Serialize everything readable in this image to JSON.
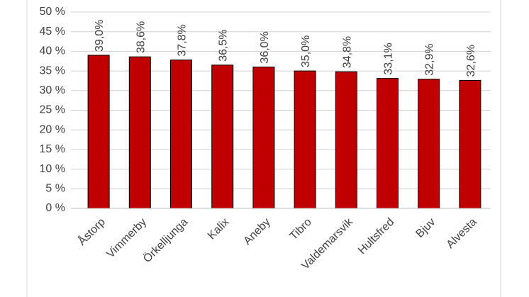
{
  "chart_data": {
    "type": "bar",
    "categories": [
      "Åstorp",
      "Vimmerby",
      "Örkelljunga",
      "Kalix",
      "Aneby",
      "Tibro",
      "Valdemarsvik",
      "Hultsfred",
      "Bjuv",
      "Alvesta"
    ],
    "values": [
      39.0,
      38.6,
      37.8,
      36.5,
      36.0,
      35.0,
      34.8,
      33.1,
      32.9,
      32.6
    ],
    "value_labels": [
      "39,0%",
      "38,6%",
      "37,8%",
      "36,5%",
      "36,0%",
      "35,0%",
      "34,8%",
      "33,1%",
      "32,9%",
      "32,6%"
    ],
    "color": "#c00000",
    "ylim": [
      0,
      50
    ],
    "yticks": [
      {
        "value": 0,
        "label": "0 %"
      },
      {
        "value": 5,
        "label": "5 %"
      },
      {
        "value": 10,
        "label": "10 %"
      },
      {
        "value": 15,
        "label": "15 %"
      },
      {
        "value": 20,
        "label": "20 %"
      },
      {
        "value": 25,
        "label": "25 %"
      },
      {
        "value": 30,
        "label": "30 %"
      },
      {
        "value": 35,
        "label": "35 %"
      },
      {
        "value": 40,
        "label": "40 %"
      },
      {
        "value": 45,
        "label": "45 %"
      },
      {
        "value": 50,
        "label": "50 %"
      }
    ],
    "grid": true
  }
}
